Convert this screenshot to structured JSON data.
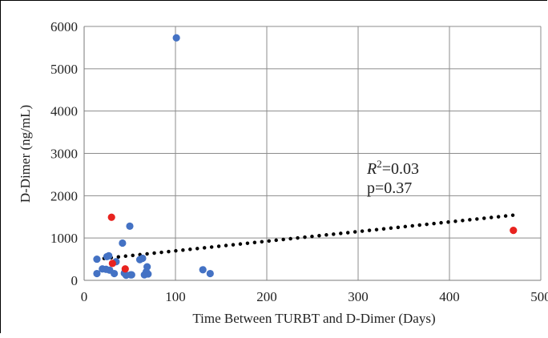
{
  "chart_data": {
    "type": "scatter",
    "xlabel": "Time Between TURBT and D-Dimer (Days)",
    "ylabel": "D-Dimer (ng/mL)",
    "xlim": [
      0,
      500
    ],
    "ylim": [
      0,
      6000
    ],
    "x_ticks": [
      "0",
      "100",
      "200",
      "300",
      "400",
      "500"
    ],
    "y_ticks": [
      "0",
      "1000",
      "2000",
      "3000",
      "4000",
      "5000",
      "6000"
    ],
    "grid": true,
    "colors": {
      "blue": "#4472c4",
      "red": "#e8231f",
      "trend": "#000000"
    },
    "series": [
      {
        "color_key": "blue",
        "points": [
          [
            14,
            500
          ],
          [
            14,
            160
          ],
          [
            20,
            270
          ],
          [
            24,
            260
          ],
          [
            25,
            560
          ],
          [
            27,
            580
          ],
          [
            28,
            240
          ],
          [
            33,
            160
          ],
          [
            35,
            440
          ],
          [
            42,
            880
          ],
          [
            44,
            170
          ],
          [
            46,
            120
          ],
          [
            50,
            1280
          ],
          [
            51,
            130
          ],
          [
            52,
            130
          ],
          [
            61,
            490
          ],
          [
            64,
            520
          ],
          [
            66,
            130
          ],
          [
            68,
            200
          ],
          [
            69,
            320
          ],
          [
            70,
            150
          ],
          [
            101,
            5730
          ],
          [
            130,
            250
          ],
          [
            138,
            160
          ]
        ]
      },
      {
        "color_key": "red",
        "points": [
          [
            30,
            1490
          ],
          [
            31,
            400
          ],
          [
            45,
            270
          ],
          [
            470,
            1180
          ]
        ]
      }
    ],
    "trendline": {
      "style": "dotted",
      "from": [
        14,
        500
      ],
      "to": [
        470,
        1540
      ]
    },
    "annotations": {
      "r2_symbol": "R",
      "r2_sup": "2",
      "r2_value": "=0.03",
      "p_value": "p=0.37"
    }
  }
}
